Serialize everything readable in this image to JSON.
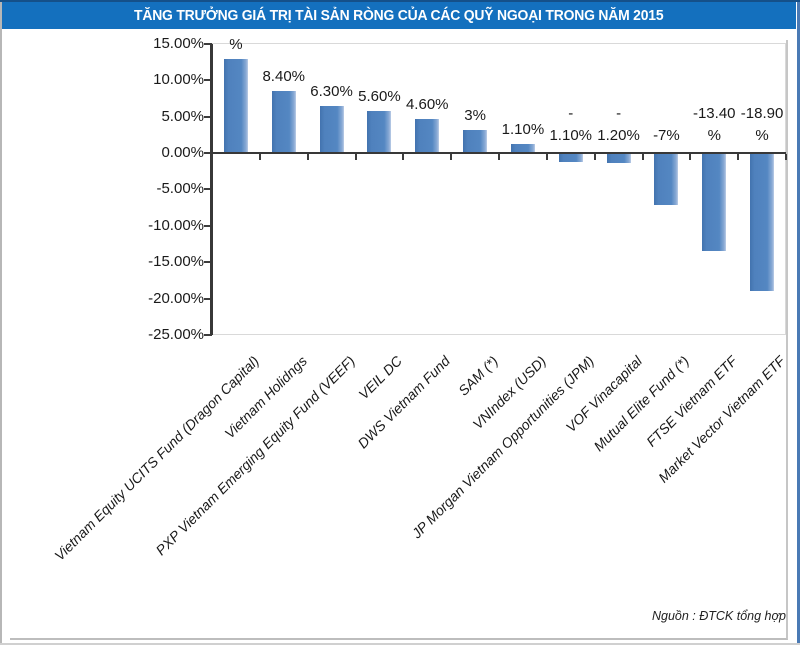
{
  "title": "TĂNG TRƯỞNG GIÁ TRỊ TÀI SẢN RÒNG CỦA CÁC QUỸ NGOẠI TRONG NĂM 2015",
  "source_note": "Nguồn : ĐTCK tổng hợp",
  "colors": {
    "title_bg": "#1470BE",
    "title_top_edge": "#155089",
    "bar": "#4F81BD",
    "axis": "#383838",
    "plot_border": "#D9D9D9",
    "text": "#1A1A1A",
    "right_edge": "#4A7AB5"
  },
  "chart_data": {
    "type": "bar",
    "title": "TĂNG TRƯỞNG GIÁ TRỊ TÀI SẢN RÒNG CỦA CÁC QUỸ NGOẠI TRONG NĂM 2015",
    "categories": [
      "Vietnam Equity UCITS Fund (Dragon Capital)",
      "Vietnam Holidngs",
      "PXP Vietnam Emerging Equity Fund (VEEF)",
      "VEIL DC",
      "DWS Vietnam Fund",
      "SAM (*)",
      "VNIndex (USD)",
      "JP Morgan Vietnam Opportunities (JPM)",
      "VOF Vinacapital",
      "Mutual Elite Fund (*)",
      "FTSE Vietnam ETF",
      "Market Vector Vietnam ETF"
    ],
    "values": [
      12.8,
      8.4,
      6.3,
      5.6,
      4.6,
      3.0,
      1.1,
      -1.1,
      -1.2,
      -7.0,
      -13.4,
      -18.9
    ],
    "bar_label_lines": [
      [
        "%"
      ],
      [
        "8.40%"
      ],
      [
        "6.30%"
      ],
      [
        "5.60%"
      ],
      [
        "4.60%"
      ],
      [
        "3%"
      ],
      [
        "1.10%"
      ],
      [
        "-",
        "1.10%"
      ],
      [
        "-",
        "1.20%"
      ],
      [
        "-7%"
      ],
      [
        "-13.40",
        "%"
      ],
      [
        "-18.90",
        "%"
      ]
    ],
    "xlabel": "",
    "ylabel": "",
    "ylim": [
      -25,
      15
    ],
    "y_ticks": [
      "15.00%",
      "10.00%",
      "5.00%",
      "0.00%",
      "-5.00%",
      "-10.00%",
      "-15.00%",
      "-20.00%",
      "-25.00%"
    ],
    "y_tick_values": [
      15,
      10,
      5,
      0,
      -5,
      -10,
      -15,
      -20,
      -25
    ],
    "grid": false,
    "legend": "none"
  }
}
